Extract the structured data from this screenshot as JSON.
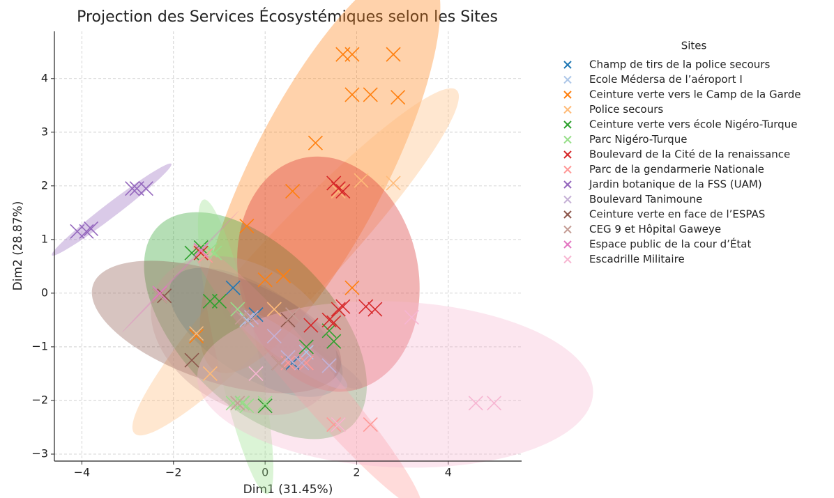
{
  "chart_data": {
    "type": "scatter",
    "title": "Projection des Services Écosystémiques selon les Sites",
    "xlabel": "Dim1 (31.45%)",
    "ylabel": "Dim2 (28.87%)",
    "legend_title": "Sites",
    "legend": "right-outside",
    "grid": true,
    "marker": "x",
    "ellipses": true,
    "xlim": [
      -4.6,
      5.6
    ],
    "ylim": [
      -3.13,
      4.88
    ],
    "xticks": [
      {
        "value": -4,
        "label": "−4"
      },
      {
        "value": -2,
        "label": "−2"
      },
      0,
      2,
      4
    ],
    "yticks": [
      {
        "value": -3,
        "label": "−3"
      },
      {
        "value": -2,
        "label": "−2"
      },
      {
        "value": -1,
        "label": "−1"
      },
      0,
      1,
      2,
      3,
      4
    ],
    "series": [
      {
        "name": "Champ de tirs de la police secours",
        "color": "#1f77b4",
        "x": [
          -0.7,
          -1.5,
          0.6,
          0.8,
          -0.2
        ],
        "values": [
          0.1,
          -0.75,
          -1.3,
          -1.3,
          -0.4
        ]
      },
      {
        "name": "Ecole Médersa de l’aéroport I",
        "color": "#aec7e8",
        "x": [
          1.4,
          0.5,
          -0.4,
          0.9
        ],
        "values": [
          -1.35,
          -1.2,
          -0.5,
          -1.1
        ]
      },
      {
        "name": "Ceinture verte vers le Camp de la Garde",
        "color": "#ff7f0e",
        "x": [
          1.7,
          1.9,
          2.8,
          1.9,
          2.3,
          2.9,
          1.1,
          0.6,
          -0.4,
          0.0,
          0.4,
          1.9,
          -1.5
        ],
        "values": [
          4.45,
          4.45,
          4.45,
          3.7,
          3.7,
          3.65,
          2.8,
          1.9,
          1.25,
          0.25,
          0.32,
          0.1,
          -0.8
        ]
      },
      {
        "name": "Police secours",
        "color": "#ffbb78",
        "x": [
          2.8,
          2.1,
          1.6,
          -1.5,
          -1.2,
          0.2
        ],
        "values": [
          2.05,
          2.1,
          1.9,
          -0.75,
          -1.5,
          -0.3
        ]
      },
      {
        "name": "Ceinture verte vers école Nigéro-Turque",
        "color": "#2ca02c",
        "x": [
          -1.6,
          -1.4,
          -1.2,
          -1.0,
          1.5,
          1.4,
          0.9,
          0.0,
          -0.5
        ],
        "values": [
          0.75,
          0.85,
          -0.15,
          -0.15,
          -0.9,
          -0.7,
          -1.0,
          -2.1,
          -2.05
        ]
      },
      {
        "name": "Parc Nigéro-Turque",
        "color": "#98df8a",
        "x": [
          -1.2,
          -1.1,
          -0.7,
          -0.5,
          -0.4,
          0.0,
          -0.6
        ],
        "values": [
          0.8,
          0.75,
          -2.05,
          -2.05,
          -2.1,
          -2.05,
          -0.3
        ]
      },
      {
        "name": "Boulevard de la Cité de la renaissance",
        "color": "#d62728",
        "x": [
          1.5,
          1.7,
          1.6,
          1.5,
          1.6,
          1.7,
          2.2,
          2.4,
          1.0,
          1.4,
          -1.4
        ],
        "values": [
          2.05,
          1.9,
          1.95,
          -0.55,
          -0.3,
          -0.25,
          -0.25,
          -0.3,
          -0.6,
          -0.5,
          0.75
        ]
      },
      {
        "name": "Parc de la gendarmerie Nationale",
        "color": "#ff9896",
        "x": [
          1.5,
          1.6,
          2.3,
          0.5,
          -1.3,
          0.9
        ],
        "values": [
          -2.45,
          -2.45,
          -2.45,
          -1.3,
          0.7,
          -1.3
        ]
      },
      {
        "name": "Jardin botanique de la FSS (UAM)",
        "color": "#9467bd",
        "x": [
          -2.9,
          -2.8,
          -2.6,
          -4.1,
          -3.9,
          -3.8
        ],
        "values": [
          1.95,
          1.95,
          1.95,
          1.15,
          1.15,
          1.2
        ]
      },
      {
        "name": "Boulevard Tanimoune",
        "color": "#c5b0d5",
        "x": [
          1.4,
          0.8,
          -0.3,
          0.2,
          0.5
        ],
        "values": [
          -1.35,
          -1.3,
          -0.45,
          -0.8,
          -1.2
        ]
      },
      {
        "name": "Ceinture verte en face de l’ESPAS",
        "color": "#8c564b",
        "x": [
          -2.2,
          -2.3,
          -1.6,
          0.5,
          0.3
        ],
        "values": [
          -0.05,
          -0.05,
          -1.25,
          -0.5,
          -1.3
        ]
      },
      {
        "name": "CEG 9 et Hôpital Gaweye",
        "color": "#c49c94",
        "x": [
          -2.3,
          -0.5,
          -0.3,
          0.6,
          0.3,
          -0.6
        ],
        "values": [
          -0.05,
          -0.45,
          -0.5,
          -0.4,
          -1.3,
          -2.05
        ]
      },
      {
        "name": "Espace public de la cour d’État",
        "color": "#e377c2",
        "x": [
          -1.4,
          -2.3
        ],
        "values": [
          0.8,
          0.0
        ]
      },
      {
        "name": "Escadrille Militaire",
        "color": "#f7b6d2",
        "x": [
          3.2,
          4.6,
          5.0,
          1.6,
          -0.2
        ],
        "values": [
          -0.45,
          -2.05,
          -2.05,
          -2.45,
          -1.5
        ]
      }
    ]
  }
}
